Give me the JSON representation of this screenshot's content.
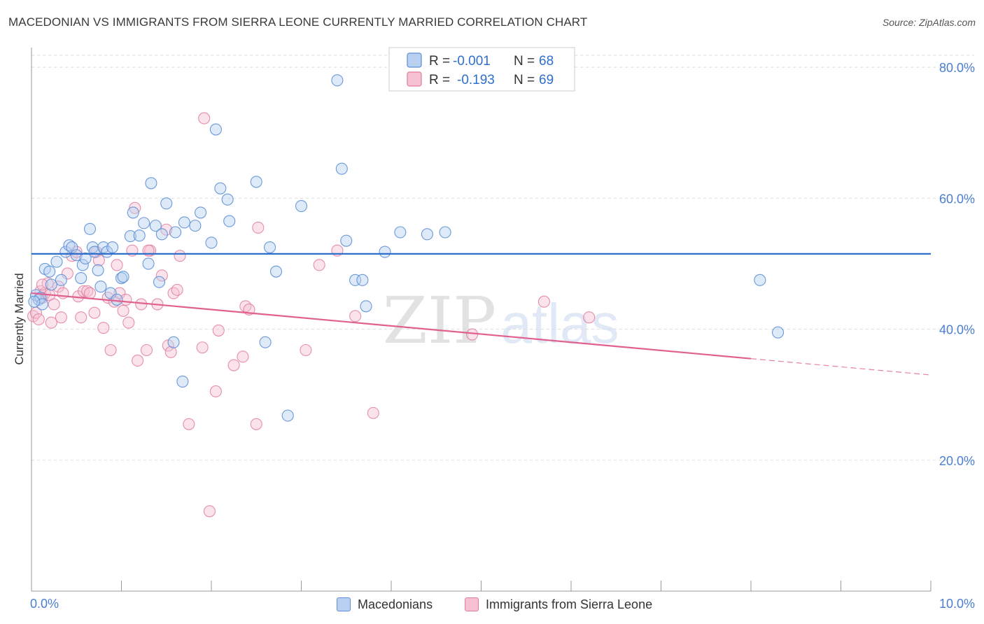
{
  "title": "MACEDONIAN VS IMMIGRANTS FROM SIERRA LEONE CURRENTLY MARRIED CORRELATION CHART",
  "source": "Source: ZipAtlas.com",
  "watermark": {
    "zip": "ZIP",
    "atlas": "atlas"
  },
  "legend_box": {
    "rows": [
      {
        "r_label": "R =",
        "r_value": "-0.001",
        "n_label": "N =",
        "n_value": "68"
      },
      {
        "r_label": "R =",
        "r_value": "-0.193",
        "n_label": "N =",
        "n_value": "69"
      }
    ]
  },
  "chart_data": {
    "type": "scatter",
    "title": "MACEDONIAN VS IMMIGRANTS FROM SIERRA LEONE CURRENTLY MARRIED CORRELATION CHART",
    "xlabel": "",
    "ylabel": "Currently Married",
    "xlim": [
      0,
      10
    ],
    "ylim": [
      0,
      83
    ],
    "x_tick_labels": [
      {
        "value": 0,
        "label": "0.0%"
      },
      {
        "value": 10,
        "label": "10.0%"
      }
    ],
    "y_ticks": [
      {
        "value": 20,
        "label": "20.0%"
      },
      {
        "value": 40,
        "label": "40.0%"
      },
      {
        "value": 60,
        "label": "60.0%"
      },
      {
        "value": 80,
        "label": "80.0%"
      }
    ],
    "legend_position": "bottom",
    "grid": true,
    "colors": {
      "blue": "#5b8fd6",
      "blue_fill": "#b9d0f0",
      "blue_line": "#2f6fcc",
      "pink": "#e07ca0",
      "pink_fill": "#f5c0d2",
      "pink_line": "#e06090",
      "axis_label": "#4a7fd0"
    },
    "series": [
      {
        "name": "Macedonians",
        "color": "#5b8fd6",
        "trend": {
          "x0": 0.0,
          "y0": 51.5,
          "x1": 10.0,
          "y1": 51.5
        },
        "points": [
          [
            0.05,
            45.2
          ],
          [
            0.08,
            44.5
          ],
          [
            0.1,
            44.8
          ],
          [
            0.12,
            43.8
          ],
          [
            0.15,
            49.2
          ],
          [
            0.2,
            48.8
          ],
          [
            0.22,
            46.8
          ],
          [
            0.28,
            50.3
          ],
          [
            0.33,
            47.5
          ],
          [
            0.38,
            51.8
          ],
          [
            0.42,
            52.8
          ],
          [
            0.45,
            52.5
          ],
          [
            0.5,
            51.3
          ],
          [
            0.55,
            47.8
          ],
          [
            0.57,
            49.8
          ],
          [
            0.6,
            50.8
          ],
          [
            0.65,
            55.3
          ],
          [
            0.68,
            52.5
          ],
          [
            0.7,
            51.8
          ],
          [
            0.74,
            49.0
          ],
          [
            0.77,
            46.5
          ],
          [
            0.8,
            52.5
          ],
          [
            0.84,
            51.8
          ],
          [
            0.88,
            45.5
          ],
          [
            0.9,
            52.5
          ],
          [
            0.95,
            44.5
          ],
          [
            1.0,
            47.8
          ],
          [
            1.02,
            48.0
          ],
          [
            1.1,
            54.2
          ],
          [
            1.13,
            57.8
          ],
          [
            1.2,
            54.3
          ],
          [
            1.25,
            56.2
          ],
          [
            1.3,
            50.0
          ],
          [
            1.33,
            62.3
          ],
          [
            1.38,
            55.8
          ],
          [
            1.42,
            47.2
          ],
          [
            1.45,
            54.5
          ],
          [
            1.5,
            59.2
          ],
          [
            1.6,
            54.8
          ],
          [
            1.58,
            38.0
          ],
          [
            1.68,
            32.0
          ],
          [
            1.7,
            56.3
          ],
          [
            1.82,
            55.8
          ],
          [
            1.88,
            57.8
          ],
          [
            2.0,
            53.2
          ],
          [
            2.05,
            70.5
          ],
          [
            2.1,
            61.5
          ],
          [
            2.18,
            59.8
          ],
          [
            2.2,
            56.5
          ],
          [
            2.5,
            62.5
          ],
          [
            2.6,
            38.0
          ],
          [
            2.65,
            52.5
          ],
          [
            2.72,
            48.8
          ],
          [
            2.85,
            26.8
          ],
          [
            3.0,
            58.8
          ],
          [
            3.4,
            78.0
          ],
          [
            3.45,
            64.5
          ],
          [
            3.5,
            53.5
          ],
          [
            3.6,
            47.5
          ],
          [
            3.68,
            47.5
          ],
          [
            3.72,
            43.5
          ],
          [
            3.93,
            51.8
          ],
          [
            4.1,
            54.8
          ],
          [
            4.4,
            54.5
          ],
          [
            4.6,
            54.8
          ],
          [
            8.1,
            47.5
          ],
          [
            8.3,
            39.5
          ],
          [
            0.03,
            44.2
          ]
        ]
      },
      {
        "name": "Immigrants from Sierra Leone",
        "color": "#e07ca0",
        "trend": {
          "x0": 0.0,
          "y0": 45.5,
          "x1": 8.0,
          "y1": 35.5,
          "dash_x1": 10.0,
          "dash_y1": 33.0
        },
        "points": [
          [
            0.02,
            42.0
          ],
          [
            0.05,
            42.5
          ],
          [
            0.08,
            41.5
          ],
          [
            0.1,
            45.8
          ],
          [
            0.12,
            44.8
          ],
          [
            0.15,
            45.5
          ],
          [
            0.18,
            47.0
          ],
          [
            0.2,
            45.2
          ],
          [
            0.22,
            41.0
          ],
          [
            0.25,
            43.8
          ],
          [
            0.3,
            46.5
          ],
          [
            0.33,
            41.8
          ],
          [
            0.35,
            45.5
          ],
          [
            0.4,
            48.5
          ],
          [
            0.45,
            51.2
          ],
          [
            0.5,
            51.8
          ],
          [
            0.52,
            45.0
          ],
          [
            0.55,
            41.8
          ],
          [
            0.58,
            45.8
          ],
          [
            0.62,
            45.8
          ],
          [
            0.65,
            45.5
          ],
          [
            0.7,
            42.5
          ],
          [
            0.72,
            51.8
          ],
          [
            0.75,
            50.5
          ],
          [
            0.8,
            40.2
          ],
          [
            0.85,
            44.8
          ],
          [
            0.88,
            36.8
          ],
          [
            0.92,
            44.2
          ],
          [
            0.95,
            49.8
          ],
          [
            0.98,
            45.5
          ],
          [
            1.02,
            42.8
          ],
          [
            1.05,
            44.5
          ],
          [
            1.08,
            41.0
          ],
          [
            1.12,
            52.0
          ],
          [
            1.15,
            58.5
          ],
          [
            1.18,
            35.2
          ],
          [
            1.22,
            43.8
          ],
          [
            1.28,
            36.8
          ],
          [
            1.32,
            52.0
          ],
          [
            1.4,
            43.8
          ],
          [
            1.45,
            48.2
          ],
          [
            1.5,
            55.2
          ],
          [
            1.52,
            37.5
          ],
          [
            1.55,
            36.5
          ],
          [
            1.58,
            45.5
          ],
          [
            1.62,
            46.0
          ],
          [
            1.65,
            51.2
          ],
          [
            1.75,
            25.5
          ],
          [
            1.9,
            37.2
          ],
          [
            1.92,
            72.2
          ],
          [
            1.98,
            12.2
          ],
          [
            2.05,
            30.5
          ],
          [
            2.08,
            39.8
          ],
          [
            2.25,
            34.5
          ],
          [
            2.35,
            35.8
          ],
          [
            2.38,
            43.5
          ],
          [
            2.42,
            43.0
          ],
          [
            2.5,
            25.5
          ],
          [
            2.52,
            55.5
          ],
          [
            3.05,
            36.8
          ],
          [
            3.2,
            49.8
          ],
          [
            3.4,
            52.0
          ],
          [
            3.6,
            42.0
          ],
          [
            3.8,
            27.2
          ],
          [
            4.9,
            39.2
          ],
          [
            5.7,
            44.2
          ],
          [
            6.2,
            41.8
          ],
          [
            1.3,
            52.0
          ],
          [
            0.12,
            46.8
          ]
        ]
      }
    ]
  }
}
